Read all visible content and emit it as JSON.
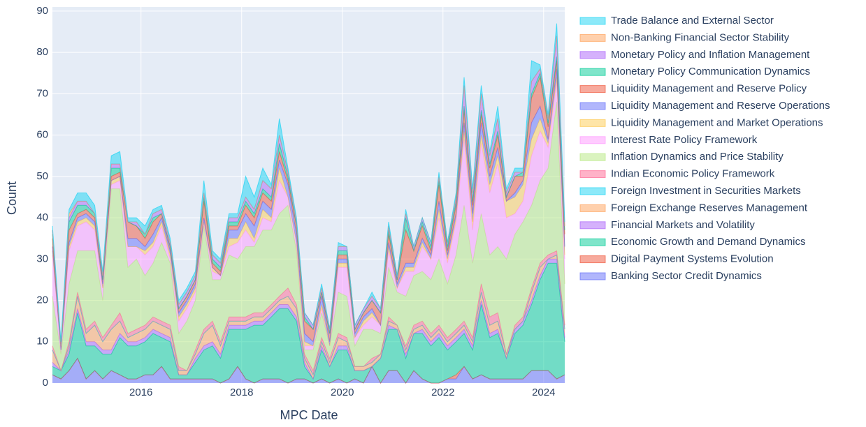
{
  "chart_data": {
    "type": "stacked-area",
    "x_label": "MPC Date",
    "y_label": "Count",
    "x": [
      2014.24,
      2014.41,
      2014.57,
      2014.74,
      2014.91,
      2015.08,
      2015.24,
      2015.41,
      2015.58,
      2015.74,
      2015.91,
      2016.08,
      2016.24,
      2016.41,
      2016.58,
      2016.75,
      2016.91,
      2017.08,
      2017.25,
      2017.42,
      2017.58,
      2017.75,
      2017.92,
      2018.08,
      2018.25,
      2018.42,
      2018.59,
      2018.75,
      2018.92,
      2019.09,
      2019.25,
      2019.42,
      2019.59,
      2019.75,
      2019.92,
      2020.09,
      2020.25,
      2020.42,
      2020.59,
      2020.76,
      2020.92,
      2021.09,
      2021.26,
      2021.42,
      2021.59,
      2021.76,
      2021.92,
      2022.09,
      2022.26,
      2022.42,
      2022.59,
      2022.76,
      2022.93,
      2023.09,
      2023.26,
      2023.43,
      2023.59,
      2023.76,
      2023.93,
      2024.09,
      2024.26,
      2024.42
    ],
    "xlim": [
      2014.24,
      2024.42
    ],
    "xticks": [
      2016,
      2018,
      2020,
      2022,
      2024
    ],
    "ylim": [
      0,
      91
    ],
    "yticks": [
      0,
      10,
      20,
      30,
      40,
      50,
      60,
      70,
      80,
      90
    ],
    "grid": true,
    "series": [
      {
        "name": "Banking Sector Credit Dynamics",
        "color": "#636efa",
        "values": [
          2,
          1,
          3,
          6,
          1,
          3,
          1,
          3,
          2,
          1,
          1,
          2,
          2,
          4,
          1,
          1,
          1,
          1,
          1,
          1,
          0,
          1,
          4,
          1,
          0,
          1,
          1,
          1,
          0,
          1,
          1,
          0,
          1,
          0,
          1,
          0,
          1,
          0,
          4,
          0,
          3,
          3,
          0,
          3,
          1,
          0,
          0,
          1,
          1,
          4,
          1,
          2,
          1,
          1,
          1,
          1,
          1,
          3,
          3,
          3,
          1,
          2
        ]
      },
      {
        "name": "Digital Payment Systems Evolution",
        "color": "#EF553B",
        "values": [
          0,
          0,
          0,
          0,
          0,
          0,
          0,
          0,
          0,
          0,
          0,
          0,
          0,
          0,
          0,
          0,
          0,
          0,
          0,
          0,
          0,
          0,
          0,
          0,
          0,
          0,
          0,
          0,
          0,
          0,
          0,
          0,
          0,
          0,
          0,
          0,
          0,
          0,
          0,
          0,
          0,
          0,
          0,
          0,
          0,
          0,
          0,
          0,
          1,
          0,
          0,
          0,
          0,
          0,
          0,
          0,
          0,
          0,
          0,
          0,
          0,
          0
        ]
      },
      {
        "name": "Economic Growth and Demand Dynamics",
        "color": "#00cc96",
        "values": [
          2,
          2,
          4,
          11,
          8,
          6,
          6,
          4,
          9,
          8,
          8,
          8,
          10,
          7,
          9,
          1,
          1,
          4,
          7,
          8,
          6,
          12,
          9,
          12,
          14,
          13,
          15,
          17,
          18,
          14,
          3,
          1,
          7,
          4,
          7,
          8,
          2,
          3,
          0,
          6,
          10,
          10,
          6,
          9,
          11,
          9,
          11,
          7,
          8,
          8,
          7,
          17,
          10,
          11,
          5,
          11,
          13,
          16,
          22,
          26,
          28,
          8
        ]
      },
      {
        "name": "Financial Markets and Volatility",
        "color": "#ab63fa",
        "values": [
          1,
          0,
          1,
          1,
          1,
          1,
          1,
          1,
          1,
          1,
          1,
          1,
          1,
          1,
          1,
          0,
          0,
          1,
          1,
          1,
          1,
          1,
          1,
          1,
          1,
          1,
          1,
          1,
          1,
          1,
          1,
          0,
          1,
          0,
          1,
          1,
          0,
          0,
          0,
          0,
          1,
          0,
          1,
          0,
          1,
          1,
          1,
          1,
          1,
          1,
          1,
          1,
          1,
          1,
          0,
          1,
          1,
          1,
          1,
          1,
          1,
          1
        ]
      },
      {
        "name": "Foreign Exchange Reserves Management",
        "color": "#FFA15A",
        "values": [
          3,
          0,
          1,
          3,
          2,
          4,
          2,
          5,
          3,
          1,
          2,
          2,
          2,
          2,
          2,
          1,
          1,
          1,
          3,
          4,
          2,
          1,
          1,
          1,
          1,
          1,
          1,
          1,
          2,
          2,
          1,
          1,
          1,
          1,
          2,
          1,
          1,
          1,
          1,
          1,
          1,
          1,
          1,
          1,
          1,
          1,
          1,
          1,
          1,
          1,
          1,
          2,
          2,
          2,
          1,
          0,
          0,
          2,
          2,
          0,
          1,
          2
        ]
      },
      {
        "name": "Foreign Investment in Securities Markets",
        "color": "#19d3f3",
        "values": [
          0,
          0,
          0,
          0,
          0,
          0,
          0,
          0,
          0,
          0,
          0,
          0,
          0,
          0,
          0,
          0,
          0,
          0,
          0,
          0,
          0,
          0,
          0,
          0,
          0,
          0,
          0,
          0,
          0,
          0,
          0,
          0,
          0,
          0,
          0,
          0,
          0,
          0,
          0,
          0,
          0,
          0,
          0,
          0,
          0,
          0,
          0,
          0,
          0,
          0,
          0,
          0,
          0,
          0,
          0,
          0,
          0,
          0,
          0,
          0,
          0,
          0
        ]
      },
      {
        "name": "Indian Economic Policy Framework",
        "color": "#FF6692",
        "values": [
          1,
          0,
          1,
          1,
          1,
          1,
          1,
          1,
          2,
          1,
          1,
          1,
          1,
          1,
          1,
          1,
          0,
          1,
          1,
          1,
          1,
          1,
          1,
          1,
          1,
          1,
          1,
          1,
          2,
          1,
          1,
          1,
          1,
          1,
          1,
          1,
          0,
          0,
          1,
          0,
          1,
          0,
          1,
          1,
          1,
          1,
          1,
          1,
          1,
          1,
          1,
          2,
          2,
          2,
          0,
          1,
          1,
          1,
          1,
          1,
          1,
          1
        ]
      },
      {
        "name": "Inflation Dynamics and Price Stability",
        "color": "#B6E880",
        "values": [
          12,
          4,
          14,
          10,
          19,
          17,
          9,
          33,
          30,
          16,
          17,
          12,
          13,
          19,
          15,
          8,
          12,
          12,
          25,
          10,
          15,
          15,
          14,
          17,
          16,
          20,
          18,
          20,
          20,
          13,
          1,
          5,
          6,
          3,
          10,
          10,
          5,
          9,
          7,
          5,
          12,
          8,
          12,
          12,
          12,
          13,
          16,
          13,
          18,
          28,
          18,
          17,
          15,
          16,
          23,
          22,
          23,
          20,
          20,
          21,
          36,
          10
        ]
      },
      {
        "name": "Interest Rate Policy Framework",
        "color": "#FF97FF",
        "values": [
          10,
          1,
          8,
          6,
          7,
          5,
          3,
          1,
          2,
          5,
          3,
          5,
          4,
          4,
          1,
          3,
          3,
          2,
          1,
          2,
          1,
          2,
          4,
          4,
          1,
          3,
          2,
          8,
          2,
          2,
          1,
          1,
          1,
          0,
          6,
          7,
          2,
          1,
          3,
          2,
          4,
          1,
          6,
          1,
          6,
          5,
          10,
          5,
          8,
          16,
          8,
          17,
          15,
          20,
          10,
          5,
          5,
          12,
          12,
          5,
          5,
          6
        ]
      },
      {
        "name": "Liquidity Management and Market Operations",
        "color": "#FECB52",
        "values": [
          1,
          0,
          1,
          1,
          1,
          1,
          0,
          1,
          1,
          0,
          0,
          1,
          1,
          1,
          1,
          1,
          1,
          1,
          0,
          1,
          0,
          2,
          1,
          2,
          1,
          2,
          1,
          3,
          0,
          0,
          1,
          0,
          1,
          0,
          1,
          1,
          0,
          1,
          1,
          0,
          1,
          0,
          1,
          1,
          1,
          0,
          2,
          1,
          1,
          2,
          2,
          2,
          2,
          2,
          4,
          4,
          4,
          4,
          3,
          1,
          1,
          1
        ]
      },
      {
        "name": "Liquidity Management and Reserve Operations",
        "color": "#636efa",
        "values": [
          1,
          0,
          1,
          1,
          1,
          1,
          1,
          0,
          0,
          2,
          2,
          1,
          2,
          1,
          1,
          1,
          1,
          1,
          1,
          0,
          0,
          2,
          2,
          2,
          3,
          2,
          2,
          2,
          3,
          2,
          2,
          1,
          2,
          1,
          1,
          1,
          1,
          1,
          1,
          0,
          1,
          1,
          1,
          1,
          1,
          1,
          2,
          1,
          1,
          2,
          2,
          3,
          2,
          2,
          0,
          1,
          1,
          4,
          3,
          1,
          2,
          2
        ]
      },
      {
        "name": "Liquidity Management and Reserve Policy",
        "color": "#EF553B",
        "values": [
          2,
          1,
          3,
          1,
          1,
          1,
          1,
          1,
          1,
          4,
          3,
          2,
          3,
          1,
          1,
          1,
          1,
          1,
          4,
          1,
          1,
          1,
          1,
          2,
          2,
          2,
          2,
          2,
          1,
          2,
          3,
          3,
          1,
          2,
          1,
          1,
          1,
          1,
          2,
          3,
          2,
          1,
          8,
          3,
          3,
          1,
          4,
          1,
          2,
          3,
          2,
          2,
          2,
          3,
          1,
          4,
          1,
          6,
          7,
          3,
          2,
          3
        ]
      },
      {
        "name": "Monetary Policy Communication Dynamics",
        "color": "#00cc96",
        "values": [
          1,
          0,
          2,
          2,
          1,
          1,
          0,
          2,
          1,
          0,
          0,
          1,
          1,
          0,
          0,
          0,
          0,
          0,
          1,
          1,
          1,
          1,
          1,
          1,
          1,
          1,
          1,
          2,
          1,
          0,
          1,
          0,
          0,
          0,
          1,
          1,
          0,
          0,
          0,
          0,
          1,
          0,
          3,
          0,
          1,
          1,
          1,
          1,
          1,
          1,
          1,
          1,
          1,
          1,
          0,
          0,
          1,
          1,
          1,
          1,
          1,
          1
        ]
      },
      {
        "name": "Monetary Policy and Inflation Management",
        "color": "#ab63fa",
        "values": [
          1,
          0,
          1,
          1,
          1,
          0,
          1,
          1,
          1,
          0,
          1,
          0,
          1,
          1,
          1,
          1,
          1,
          1,
          1,
          1,
          1,
          1,
          1,
          1,
          1,
          2,
          2,
          2,
          1,
          1,
          1,
          1,
          1,
          1,
          1,
          1,
          1,
          1,
          1,
          1,
          1,
          1,
          1,
          1,
          1,
          1,
          1,
          1,
          1,
          5,
          2,
          4,
          2,
          3,
          1,
          1,
          0,
          3,
          1,
          1,
          5,
          1
        ]
      },
      {
        "name": "Non-Banking Financial Sector Stability",
        "color": "#FFA15A",
        "values": [
          0,
          0,
          1,
          0,
          0,
          0,
          0,
          0,
          0,
          0,
          0,
          0,
          0,
          0,
          0,
          0,
          0,
          0,
          0,
          0,
          0,
          0,
          0,
          0,
          0,
          0,
          0,
          0,
          0,
          0,
          0,
          0,
          0,
          0,
          0,
          0,
          0,
          0,
          0,
          0,
          0,
          0,
          0,
          0,
          0,
          0,
          0,
          0,
          0,
          0,
          0,
          0,
          0,
          0,
          0,
          0,
          0,
          0,
          0,
          0,
          0,
          0
        ]
      },
      {
        "name": "Trade Balance and External Sector",
        "color": "#19d3f3",
        "values": [
          1,
          1,
          1,
          2,
          2,
          2,
          1,
          2,
          3,
          1,
          1,
          2,
          1,
          1,
          1,
          1,
          1,
          1,
          3,
          1,
          1,
          1,
          1,
          5,
          3,
          3,
          1,
          4,
          1,
          1,
          0,
          0,
          1,
          0,
          1,
          0,
          0,
          0,
          1,
          0,
          1,
          0,
          1,
          0,
          0,
          0,
          1,
          0,
          1,
          2,
          1,
          2,
          1,
          3,
          1,
          1,
          1,
          5,
          1,
          1,
          3,
          1
        ]
      }
    ]
  }
}
